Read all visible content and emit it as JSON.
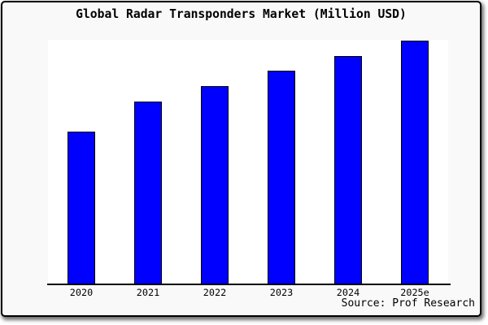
{
  "window": {
    "title": "Global Radar Transponders Market (Million USD)"
  },
  "chart_data": {
    "type": "bar",
    "title": "Global Radar Transponders Market (Million USD)",
    "categories": [
      "2020",
      "2021",
      "2022",
      "2023",
      "2024",
      "2025e"
    ],
    "values": [
      62.7,
      75.0,
      81.3,
      87.7,
      93.7,
      100
    ],
    "values_note": "y-axis has no scale or labels; values estimated from relative bar heights as percent of the 2025e bar",
    "xlabel": "",
    "ylabel": "",
    "ylim": [
      0,
      100.3
    ],
    "grid": false,
    "legend": null,
    "bar_color": "#0000ff",
    "bar_edge_color": "#000000",
    "source_note": "Source: Prof Research"
  },
  "colors": {
    "card_background": "#f9f9f9",
    "plot_background": "#ffffff",
    "axis_line": "#000000",
    "border": "#000000",
    "text": "#000000"
  }
}
